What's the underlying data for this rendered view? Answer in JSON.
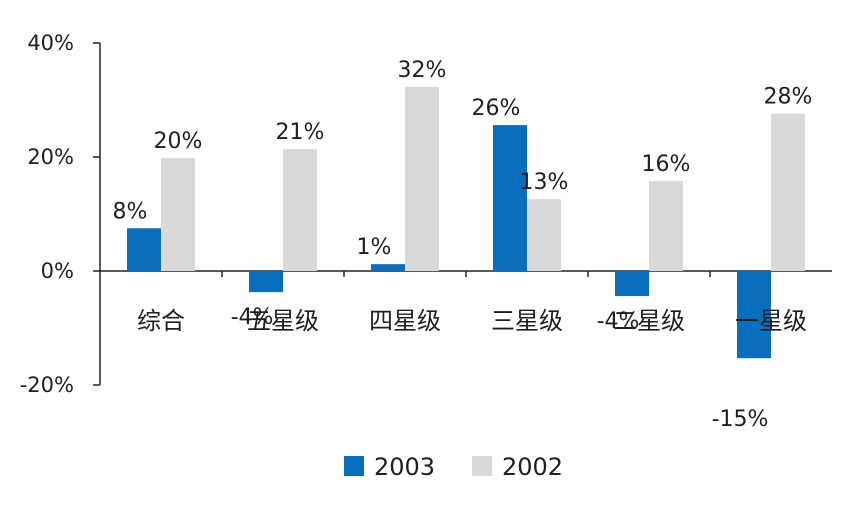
{
  "chart_data": {
    "type": "bar",
    "categories": [
      "综合",
      "五星级",
      "四星级",
      "三星级",
      "二星级",
      "一星级"
    ],
    "series": [
      {
        "name": "2003",
        "color": "#0a6ebd",
        "values": [
          7.5,
          -3.7,
          1.2,
          25.6,
          -4.4,
          -15.3
        ],
        "labels": [
          "8%",
          "-4%",
          "1%",
          "26%",
          "-4%",
          "-15%"
        ]
      },
      {
        "name": "2002",
        "color": "#d9d9d9",
        "values": [
          19.8,
          21.4,
          32.3,
          12.6,
          15.8,
          27.6
        ],
        "labels": [
          "20%",
          "21%",
          "32%",
          "13%",
          "16%",
          "28%"
        ]
      }
    ],
    "ylim": [
      -20,
      40
    ],
    "yticks": [
      -20,
      0,
      20,
      40
    ],
    "ytick_labels": [
      "-20%",
      "0%",
      "20%",
      "40%"
    ],
    "grid": false,
    "legend_position": "bottom-center"
  }
}
